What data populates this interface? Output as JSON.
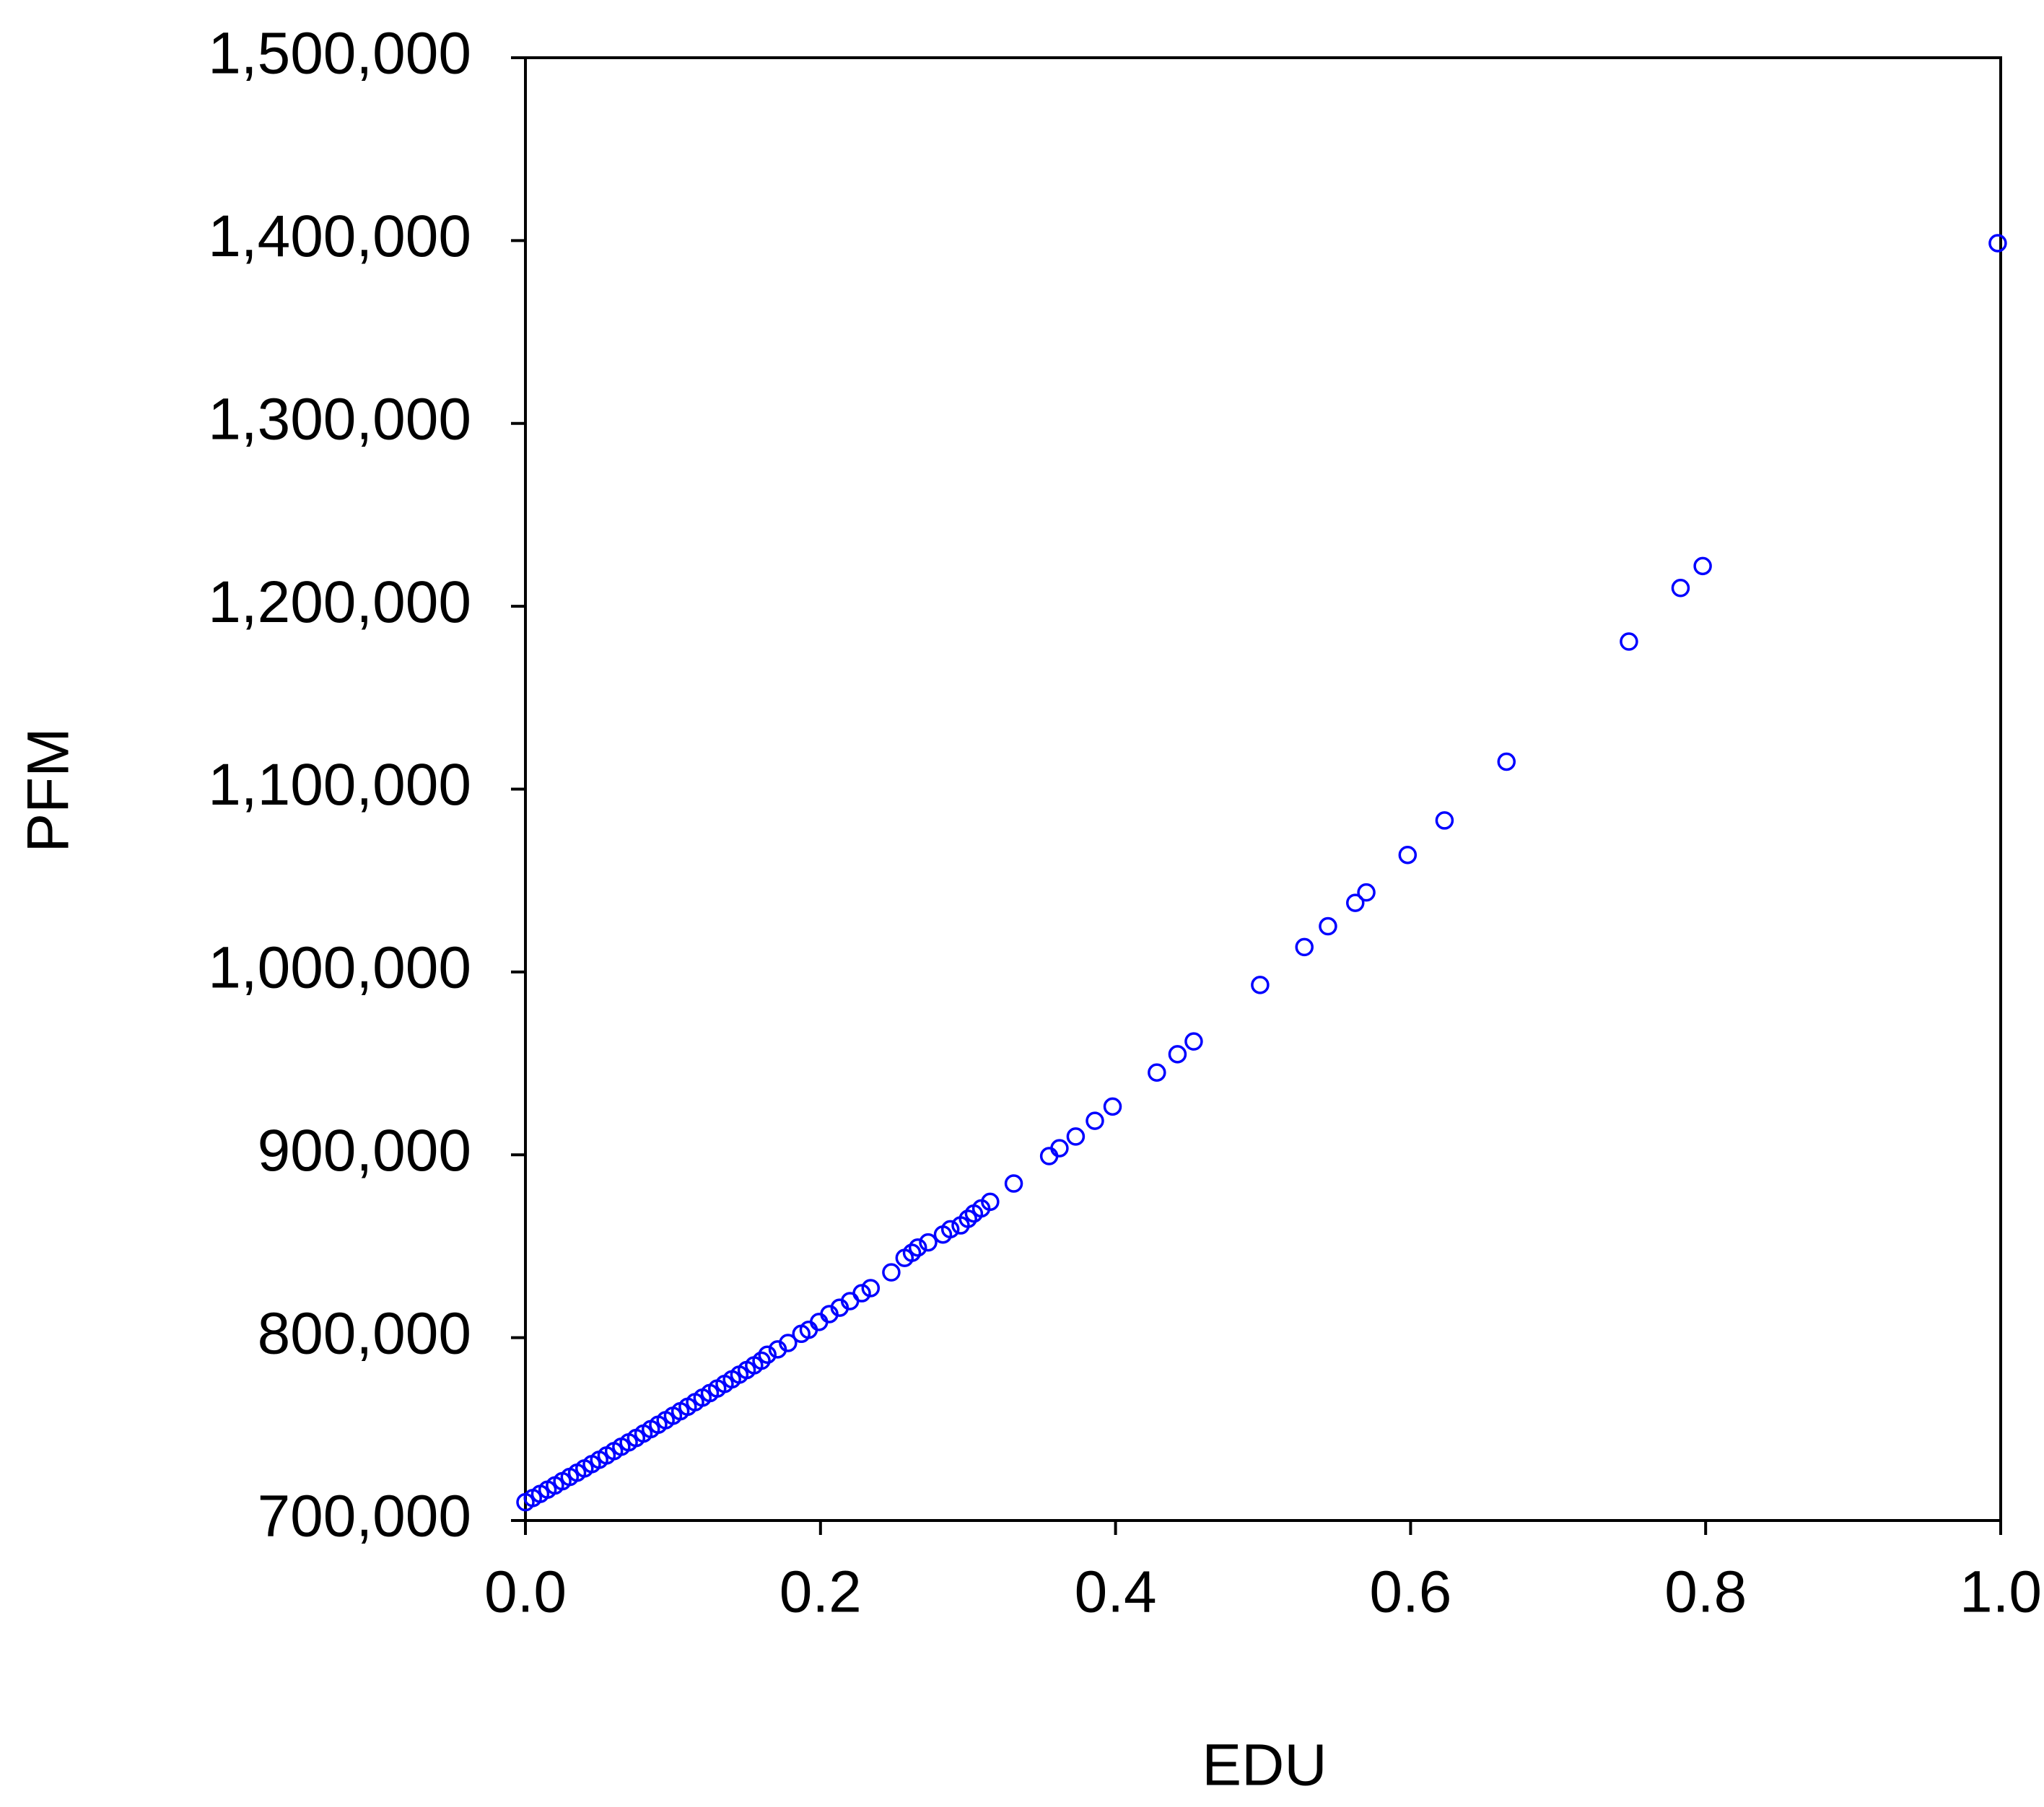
{
  "chart_data": {
    "type": "scatter",
    "x_label": "EDU",
    "y_label": "PFM",
    "color": "#0000ff",
    "xlim": [
      0,
      1
    ],
    "ylim": [
      700000,
      1500000
    ],
    "xticks": [
      {
        "value": 0,
        "label": "0.0"
      },
      0.2,
      0.4,
      0.6,
      0.8,
      {
        "value": 1,
        "label": "1.0"
      }
    ],
    "yticks": [
      {
        "value": 700000,
        "label": "700,000"
      },
      {
        "value": 800000,
        "label": "800,000"
      },
      {
        "value": 900000,
        "label": "900,000"
      },
      {
        "value": 1000000,
        "label": "1,000,000"
      },
      {
        "value": 1100000,
        "label": "1,100,000"
      },
      {
        "value": 1200000,
        "label": "1,200,000"
      },
      {
        "value": 1300000,
        "label": "1,300,000"
      },
      {
        "value": 1400000,
        "label": "1,400,000"
      },
      {
        "value": 1500000,
        "label": "1,500,000"
      }
    ],
    "x": [
      0,
      0.005,
      0.01,
      0.015,
      0.02,
      0.025,
      0.03,
      0.035,
      0.04,
      0.045,
      0.05,
      0.055,
      0.06,
      0.065,
      0.07,
      0.075,
      0.08,
      0.085,
      0.09,
      0.095,
      0.1,
      0.105,
      0.11,
      0.115,
      0.12,
      0.125,
      0.13,
      0.135,
      0.14,
      0.145,
      0.15,
      0.155,
      0.16,
      0.164,
      0.171,
      0.178,
      0.187,
      0.192,
      0.199,
      0.206,
      0.213,
      0.22,
      0.228,
      0.234,
      0.248,
      0.257,
      0.262,
      0.266,
      0.273,
      0.283,
      0.288,
      0.295,
      0.3,
      0.304,
      0.309,
      0.315,
      0.331,
      0.355,
      0.362,
      0.373,
      0.386,
      0.398,
      0.428,
      0.442,
      0.453,
      0.498,
      0.528,
      0.544,
      0.5625,
      0.57,
      0.598,
      0.623,
      0.665,
      0.748,
      0.783,
      0.798,
      0.998
    ],
    "values": [
      710000,
      712280,
      714570,
      716870,
      719170,
      721490,
      723810,
      726150,
      728490,
      730840,
      733200,
      735570,
      737950,
      740340,
      742730,
      745140,
      747550,
      749980,
      752410,
      754850,
      757300,
      759760,
      762230,
      764710,
      767190,
      769690,
      772190,
      774710,
      777230,
      779760,
      782300,
      784850,
      787410,
      790700,
      793600,
      797100,
      802100,
      804300,
      808600,
      812900,
      816400,
      820000,
      824300,
      827100,
      835700,
      843600,
      846400,
      849300,
      852100,
      856400,
      859300,
      861400,
      865000,
      867900,
      870700,
      874300,
      884300,
      899300,
      903600,
      910000,
      918600,
      926400,
      945000,
      955000,
      962000,
      992900,
      1013600,
      1025000,
      1037800,
      1043500,
      1064000,
      1082857,
      1115000,
      1180700,
      1210000,
      1222000,
      1398571
    ]
  }
}
